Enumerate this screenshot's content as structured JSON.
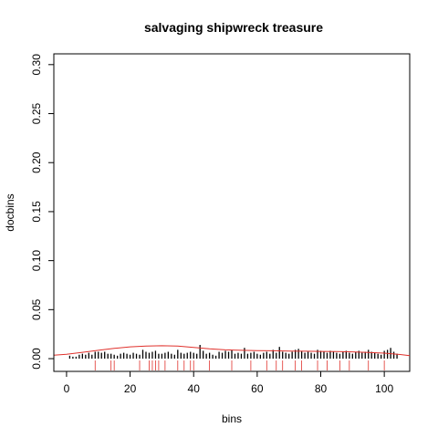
{
  "chart_data": {
    "type": "bar",
    "title": "salvaging shipwreck treasure",
    "xlabel": "bins",
    "ylabel": "docbins",
    "xlim": [
      -4,
      108
    ],
    "ylim": [
      -0.013,
      0.311
    ],
    "xticks": [
      0,
      20,
      40,
      60,
      80,
      100
    ],
    "yticks": [
      0.0,
      0.05,
      0.1,
      0.15,
      0.2,
      0.25,
      0.3
    ],
    "ytick_labels": [
      "0.00",
      "0.05",
      "0.10",
      "0.15",
      "0.20",
      "0.25",
      "0.30"
    ],
    "bins": [
      1,
      2,
      3,
      4,
      5,
      6,
      7,
      8,
      9,
      10,
      11,
      12,
      13,
      14,
      15,
      16,
      17,
      18,
      19,
      20,
      21,
      22,
      23,
      24,
      25,
      26,
      27,
      28,
      29,
      30,
      31,
      32,
      33,
      34,
      35,
      36,
      37,
      38,
      39,
      40,
      41,
      42,
      43,
      44,
      45,
      46,
      47,
      48,
      49,
      50,
      51,
      52,
      53,
      54,
      55,
      56,
      57,
      58,
      59,
      60,
      61,
      62,
      63,
      64,
      65,
      66,
      67,
      68,
      69,
      70,
      71,
      72,
      73,
      74,
      75,
      76,
      77,
      78,
      79,
      80,
      81,
      82,
      83,
      84,
      85,
      86,
      87,
      88,
      89,
      90,
      91,
      92,
      93,
      94,
      95,
      96,
      97,
      98,
      99,
      100,
      101,
      102,
      103,
      104
    ],
    "values": [
      0.003,
      0.002,
      0.002,
      0.004,
      0.005,
      0.004,
      0.006,
      0.004,
      0.007,
      0.007,
      0.006,
      0.007,
      0.005,
      0.005,
      0.004,
      0.003,
      0.005,
      0.006,
      0.005,
      0.004,
      0.006,
      0.005,
      0.004,
      0.009,
      0.007,
      0.006,
      0.007,
      0.008,
      0.005,
      0.005,
      0.006,
      0.007,
      0.005,
      0.004,
      0.009,
      0.006,
      0.005,
      0.006,
      0.007,
      0.006,
      0.005,
      0.014,
      0.008,
      0.005,
      0.006,
      0.004,
      0.003,
      0.007,
      0.006,
      0.008,
      0.007,
      0.009,
      0.005,
      0.006,
      0.005,
      0.011,
      0.005,
      0.006,
      0.007,
      0.005,
      0.004,
      0.006,
      0.007,
      0.005,
      0.009,
      0.006,
      0.012,
      0.007,
      0.006,
      0.005,
      0.007,
      0.009,
      0.01,
      0.008,
      0.006,
      0.007,
      0.006,
      0.005,
      0.009,
      0.008,
      0.007,
      0.006,
      0.008,
      0.007,
      0.006,
      0.005,
      0.007,
      0.008,
      0.006,
      0.005,
      0.007,
      0.008,
      0.006,
      0.007,
      0.009,
      0.007,
      0.006,
      0.005,
      0.004,
      0.008,
      0.009,
      0.011,
      0.007,
      0.005
    ],
    "rug_x": [
      9,
      14,
      15,
      23,
      26,
      27,
      28,
      29,
      31,
      35,
      37,
      39,
      40,
      45,
      52,
      58,
      63,
      66,
      68,
      72,
      74,
      79,
      82,
      86,
      89,
      95,
      100
    ],
    "density_curve": {
      "x": [
        -4,
        0,
        5,
        10,
        15,
        20,
        25,
        30,
        35,
        40,
        45,
        50,
        55,
        60,
        65,
        70,
        75,
        80,
        85,
        90,
        95,
        100,
        105,
        108
      ],
      "y": [
        0.0035,
        0.0045,
        0.0065,
        0.0085,
        0.0105,
        0.012,
        0.0128,
        0.0132,
        0.0128,
        0.0115,
        0.01,
        0.009,
        0.0085,
        0.0082,
        0.008,
        0.0078,
        0.0076,
        0.0074,
        0.0072,
        0.0069,
        0.0064,
        0.0056,
        0.0042,
        0.003
      ]
    },
    "colors": {
      "bars": "#000000",
      "curve": "#e0312c",
      "rug": "#e0312c",
      "frame": "#000000"
    },
    "grid": false
  }
}
